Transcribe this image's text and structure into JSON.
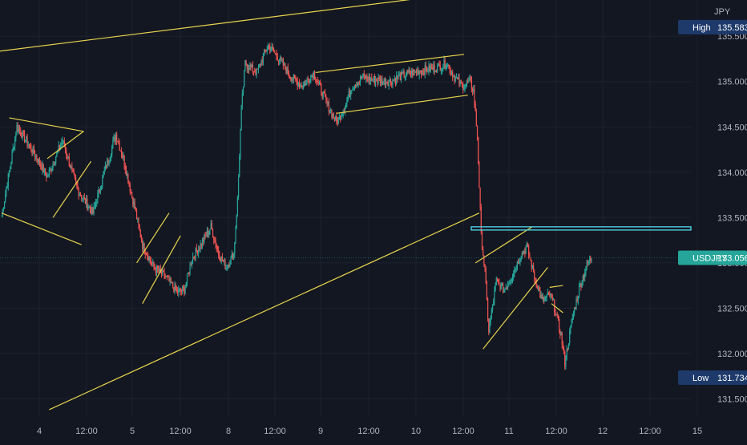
{
  "colors": {
    "background": "#131722",
    "up": "#26a69a",
    "down": "#ef5350",
    "trendline": "#e8d44d",
    "resistance": "#4dd0e1",
    "axis_text": "#b2b5be",
    "grid": "#1e222d"
  },
  "chart_data": {
    "type": "candlestick",
    "currency_label": "JPY",
    "symbol": "USDJPY",
    "last_price": "133.056",
    "high_label": "High",
    "high_value": "135.583",
    "low_label": "Low",
    "low_value": "131.734",
    "y_ticks": [
      "135.500",
      "135.000",
      "134.500",
      "134.000",
      "133.500",
      "133.000",
      "132.500",
      "132.000",
      "131.500"
    ],
    "x_ticks": [
      "4",
      "12:00",
      "5",
      "12:00",
      "8",
      "12:00",
      "9",
      "12:00",
      "10",
      "12:00",
      "11",
      "12:00",
      "12",
      "12:00",
      "15"
    ],
    "ylim": [
      131.3,
      135.9
    ],
    "path": [
      [
        0,
        133.52
      ],
      [
        4,
        134.5
      ],
      [
        8,
        134.25
      ],
      [
        12,
        133.95
      ],
      [
        16,
        134.35
      ],
      [
        20,
        133.8
      ],
      [
        24,
        133.55
      ],
      [
        27,
        134.0
      ],
      [
        30,
        134.42
      ],
      [
        32,
        134.15
      ],
      [
        35,
        133.6
      ],
      [
        37,
        133.2
      ],
      [
        40,
        132.95
      ],
      [
        43,
        132.85
      ],
      [
        46,
        132.68
      ],
      [
        48,
        132.7
      ],
      [
        50,
        133.05
      ],
      [
        53,
        133.25
      ],
      [
        55,
        133.4
      ],
      [
        57,
        133.1
      ],
      [
        59,
        132.95
      ],
      [
        61,
        133.1
      ],
      [
        62,
        133.7
      ],
      [
        63,
        134.7
      ],
      [
        64,
        135.2
      ],
      [
        67,
        135.1
      ],
      [
        70,
        135.4
      ],
      [
        73,
        135.25
      ],
      [
        76,
        135.05
      ],
      [
        79,
        134.95
      ],
      [
        82,
        135.1
      ],
      [
        85,
        134.8
      ],
      [
        88,
        134.55
      ],
      [
        90,
        134.7
      ],
      [
        92,
        134.95
      ],
      [
        95,
        135.05
      ],
      [
        98,
        135.02
      ],
      [
        102,
        135.0
      ],
      [
        106,
        135.08
      ],
      [
        110,
        135.12
      ],
      [
        114,
        135.15
      ],
      [
        117,
        135.2
      ],
      [
        119,
        135.05
      ],
      [
        121,
        134.95
      ],
      [
        123,
        135.0
      ],
      [
        124,
        134.9
      ],
      [
        125,
        134.4
      ],
      [
        126,
        133.3
      ],
      [
        127,
        132.9
      ],
      [
        128,
        132.25
      ],
      [
        130,
        132.8
      ],
      [
        132,
        132.7
      ],
      [
        134,
        132.85
      ],
      [
        136,
        133.05
      ],
      [
        138,
        133.18
      ],
      [
        140,
        132.85
      ],
      [
        142,
        132.58
      ],
      [
        144,
        132.65
      ],
      [
        145,
        132.55
      ],
      [
        147,
        132.2
      ],
      [
        148,
        131.9
      ],
      [
        150,
        132.4
      ],
      [
        152,
        132.75
      ],
      [
        154,
        133.0
      ],
      [
        155,
        133.056
      ]
    ],
    "total_bars": 155,
    "trendlines": [
      {
        "name": "channel-upper",
        "p1": [
          -1.5,
          135.33
        ],
        "p2": [
          121.5,
          135.98
        ],
        "color": "resistance_none"
      },
      {
        "name": "channel-lower",
        "p1": [
          12.5,
          131.38
        ],
        "p2": [
          125.5,
          133.55
        ]
      },
      {
        "name": "wedge-upper",
        "p1": [
          2.0,
          134.6
        ],
        "p2": [
          21.6,
          134.45
        ]
      },
      {
        "name": "wedge-lower",
        "p1": [
          0.0,
          133.55
        ],
        "p2": [
          21.0,
          133.2
        ]
      },
      {
        "name": "flag-upper",
        "p1": [
          12.0,
          134.15
        ],
        "p2": [
          21.5,
          134.45
        ]
      },
      {
        "name": "flag-lower",
        "p1": [
          13.5,
          133.5
        ],
        "p2": [
          23.5,
          134.12
        ]
      },
      {
        "name": "flag2-upper",
        "p1": [
          35.5,
          133.0
        ],
        "p2": [
          44.0,
          133.55
        ]
      },
      {
        "name": "flag2-lower",
        "p1": [
          37.0,
          132.55
        ],
        "p2": [
          47.0,
          133.3
        ]
      },
      {
        "name": "range-upper",
        "p1": [
          82.5,
          135.1
        ],
        "p2": [
          121.5,
          135.3
        ]
      },
      {
        "name": "range-lower",
        "p1": [
          88.0,
          134.65
        ],
        "p2": [
          122.5,
          134.85
        ]
      },
      {
        "name": "rise-upper",
        "p1": [
          124.5,
          133.0
        ],
        "p2": [
          139.5,
          133.4
        ]
      },
      {
        "name": "rise-lower",
        "p1": [
          126.5,
          132.05
        ],
        "p2": [
          143.5,
          132.95
        ]
      },
      {
        "name": "flag3-upper",
        "p1": [
          144.0,
          132.73
        ],
        "p2": [
          147.5,
          132.75
        ]
      },
      {
        "name": "flag3-lower",
        "p1": [
          144.5,
          132.55
        ],
        "p2": [
          147.5,
          132.45
        ]
      }
    ],
    "resistance_level": 133.38
  }
}
